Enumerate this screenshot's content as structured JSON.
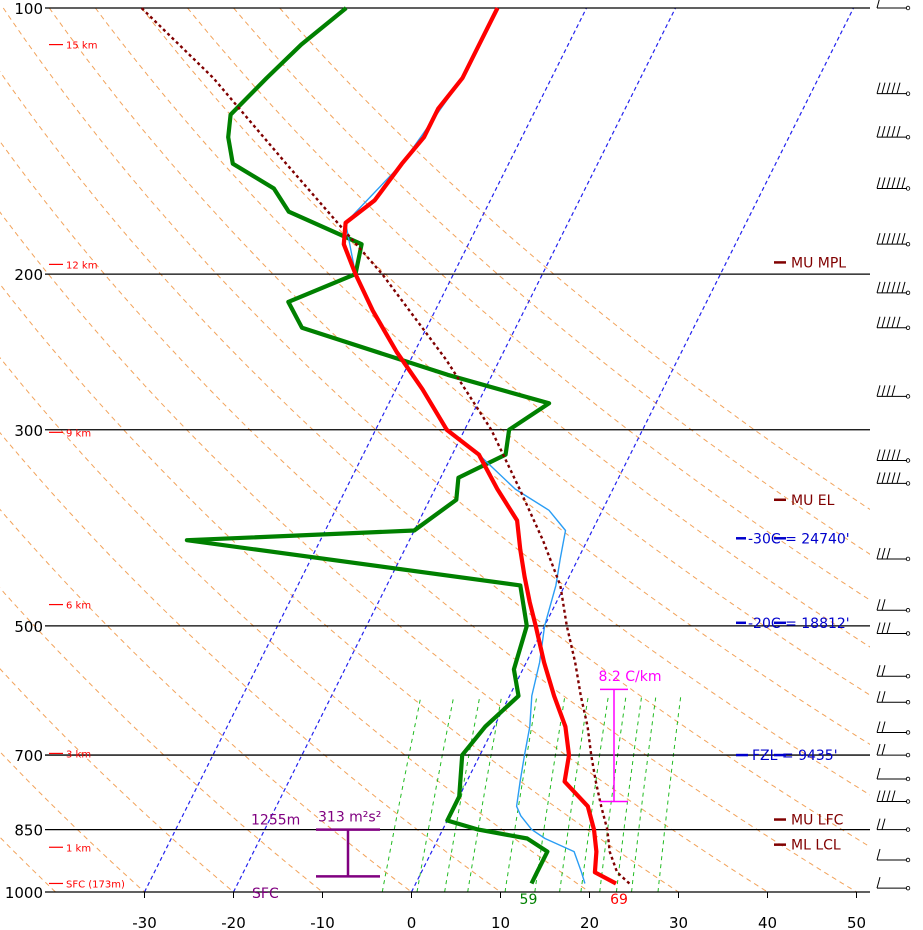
{
  "chart_data": {
    "type": "line",
    "title": "",
    "xlabel": "",
    "ylabel": "",
    "y_scale": "log-pressure",
    "ylim": [
      1000,
      100
    ],
    "xlim": [
      -40,
      50
    ],
    "x_ticks": [
      "-30",
      "-20",
      "-10",
      "0",
      "10",
      "20",
      "30",
      "40",
      "50"
    ],
    "y_ticks": [
      "100",
      "200",
      "300",
      "500",
      "700",
      "850",
      "1000"
    ],
    "height_labels": [
      {
        "p": 110,
        "text": "15 km"
      },
      {
        "p": 195,
        "text": "12 km"
      },
      {
        "p": 302,
        "text": "9 km"
      },
      {
        "p": 473,
        "text": "6 km"
      },
      {
        "p": 697,
        "text": "3 km"
      },
      {
        "p": 890,
        "text": "1 km"
      },
      {
        "p": 978,
        "text": "SFC (173m)"
      }
    ],
    "series": [
      {
        "role": "temperature",
        "color": "#ff0000",
        "points": [
          [
            978,
            22.5
          ],
          [
            950,
            19.5
          ],
          [
            900,
            18.5
          ],
          [
            850,
            17
          ],
          [
            800,
            15
          ],
          [
            750,
            11
          ],
          [
            700,
            10
          ],
          [
            650,
            8
          ],
          [
            600,
            5
          ],
          [
            550,
            2
          ],
          [
            500,
            -1
          ],
          [
            470,
            -3
          ],
          [
            440,
            -5
          ],
          [
            410,
            -7
          ],
          [
            380,
            -9
          ],
          [
            350,
            -13
          ],
          [
            320,
            -17
          ],
          [
            300,
            -22
          ],
          [
            270,
            -27
          ],
          [
            245,
            -32
          ],
          [
            220,
            -37
          ],
          [
            200,
            -41
          ],
          [
            185,
            -44
          ],
          [
            175,
            -45
          ],
          [
            165,
            -43
          ],
          [
            150,
            -42
          ],
          [
            140,
            -41
          ],
          [
            130,
            -41
          ],
          [
            120,
            -40
          ],
          [
            112,
            -40
          ],
          [
            100,
            -40
          ]
        ]
      },
      {
        "role": "dewpoint",
        "color": "#008000",
        "points": [
          [
            978,
            13
          ],
          [
            950,
            13
          ],
          [
            900,
            13
          ],
          [
            870,
            10
          ],
          [
            850,
            4
          ],
          [
            830,
            0
          ],
          [
            780,
            0
          ],
          [
            700,
            -2
          ],
          [
            650,
            -1
          ],
          [
            600,
            1
          ],
          [
            560,
            -1
          ],
          [
            500,
            -2
          ],
          [
            450,
            -5
          ],
          [
            400,
            -45
          ],
          [
            390,
            -20
          ],
          [
            360,
            -17
          ],
          [
            340,
            -18
          ],
          [
            320,
            -14
          ],
          [
            300,
            -15
          ],
          [
            280,
            -12
          ],
          [
            260,
            -25
          ],
          [
            230,
            -44
          ],
          [
            215,
            -47
          ],
          [
            200,
            -41
          ],
          [
            185,
            -42
          ],
          [
            170,
            -52
          ],
          [
            160,
            -55
          ],
          [
            150,
            -61
          ],
          [
            140,
            -63
          ],
          [
            132,
            -64
          ],
          [
            120,
            -62
          ],
          [
            110,
            -60
          ],
          [
            100,
            -57
          ]
        ]
      },
      {
        "role": "virtual-temperature",
        "color": "#2a9df4",
        "points": [
          [
            978,
            19
          ],
          [
            950,
            18
          ],
          [
            900,
            16
          ],
          [
            870,
            12
          ],
          [
            850,
            10
          ],
          [
            820,
            8
          ],
          [
            800,
            7
          ],
          [
            750,
            6
          ],
          [
            700,
            5
          ],
          [
            650,
            4
          ],
          [
            600,
            2.5
          ],
          [
            550,
            1.5
          ],
          [
            500,
            0
          ],
          [
            450,
            -1
          ],
          [
            420,
            -2
          ],
          [
            390,
            -3
          ],
          [
            370,
            -6
          ],
          [
            350,
            -11
          ],
          [
            320,
            -17
          ],
          [
            300,
            -22
          ],
          [
            270,
            -27
          ],
          [
            245,
            -32
          ],
          [
            220,
            -37
          ],
          [
            200,
            -41
          ],
          [
            175,
            -45
          ],
          [
            150,
            -42
          ],
          [
            120,
            -40
          ],
          [
            100,
            -40
          ]
        ]
      },
      {
        "role": "parcel",
        "color": "#800000",
        "points": [
          [
            978,
            24
          ],
          [
            950,
            22
          ],
          [
            900,
            20
          ],
          [
            850,
            18.5
          ],
          [
            800,
            16.5
          ],
          [
            750,
            14.5
          ],
          [
            700,
            12.5
          ],
          [
            650,
            10.5
          ],
          [
            600,
            8
          ],
          [
            550,
            5.5
          ],
          [
            500,
            2.5
          ],
          [
            450,
            -0.5
          ],
          [
            400,
            -5
          ],
          [
            350,
            -10.5
          ],
          [
            300,
            -17
          ],
          [
            250,
            -26
          ],
          [
            200,
            -38
          ],
          [
            150,
            -55
          ],
          [
            120,
            -68
          ],
          [
            100,
            -80
          ]
        ]
      }
    ],
    "annotations": [
      {
        "text": "MU MPL",
        "p": 194,
        "color": "#800000"
      },
      {
        "text": "MU EL",
        "p": 360,
        "color": "#800000"
      },
      {
        "text": "-30C = 24740'",
        "p": 398,
        "color": "#0000cc"
      },
      {
        "text": "-20C = 18812'",
        "p": 496,
        "color": "#0000cc"
      },
      {
        "text": "FZL = 9435'",
        "p": 700,
        "color": "#0000cc"
      },
      {
        "text": "MU LFC",
        "p": 828,
        "color": "#800000"
      },
      {
        "text": "ML LCL",
        "p": 884,
        "color": "#800000"
      },
      {
        "text": "8.2 C/km",
        "color": "#ff00ff"
      },
      {
        "text": "1255m",
        "color": "#800080"
      },
      {
        "text": "313 m²s²",
        "color": "#800080"
      },
      {
        "text": "SFC",
        "color": "#800080"
      },
      {
        "text": "59",
        "color": "#008000"
      },
      {
        "text": "69",
        "color": "#ff0000"
      }
    ],
    "wind_barb_pressures": [
      100,
      125,
      140,
      160,
      185,
      210,
      230,
      275,
      325,
      345,
      420,
      480,
      510,
      570,
      610,
      660,
      700,
      745,
      790,
      850,
      920,
      990
    ],
    "grid": true
  }
}
